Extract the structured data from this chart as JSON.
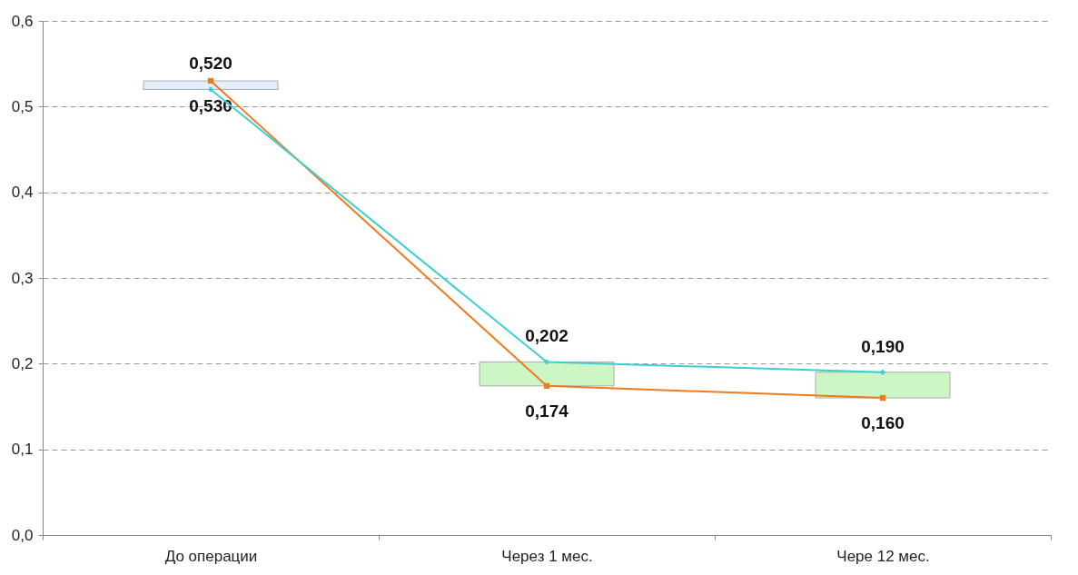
{
  "chart_data": {
    "type": "line",
    "categories": [
      "До операции",
      "Через 1 мес.",
      "Чере 12 мес."
    ],
    "ylim": [
      0,
      0.6
    ],
    "yticks": [
      {
        "value": 0,
        "label": "0,0"
      },
      {
        "value": 0.1,
        "label": "0,1"
      },
      {
        "value": 0.2,
        "label": "0,2"
      },
      {
        "value": 0.3,
        "label": "0,3"
      },
      {
        "value": 0.4,
        "label": "0,4"
      },
      {
        "value": 0.5,
        "label": "0,5"
      },
      {
        "value": 0.6,
        "label": "0,6"
      }
    ],
    "grid": "y",
    "series": [
      {
        "type": "bar",
        "base": [
          0.52,
          0.174,
          0.16
        ],
        "values": [
          0.01,
          0.028,
          0.03
        ],
        "colors": [
          "#e3effa",
          "#ccf7c4",
          "#ccf7c4"
        ]
      },
      {
        "color": "#f07a1e",
        "marker": "square",
        "values": [
          0.53,
          0.174,
          0.16
        ],
        "value_labels": [
          "0,530",
          "0,174",
          "0,160"
        ]
      },
      {
        "color": "#3ccfcf",
        "marker": "diamond",
        "values": [
          0.52,
          0.202,
          0.19
        ],
        "value_labels": [
          "0,520",
          "0,202",
          "0,190"
        ]
      }
    ]
  }
}
